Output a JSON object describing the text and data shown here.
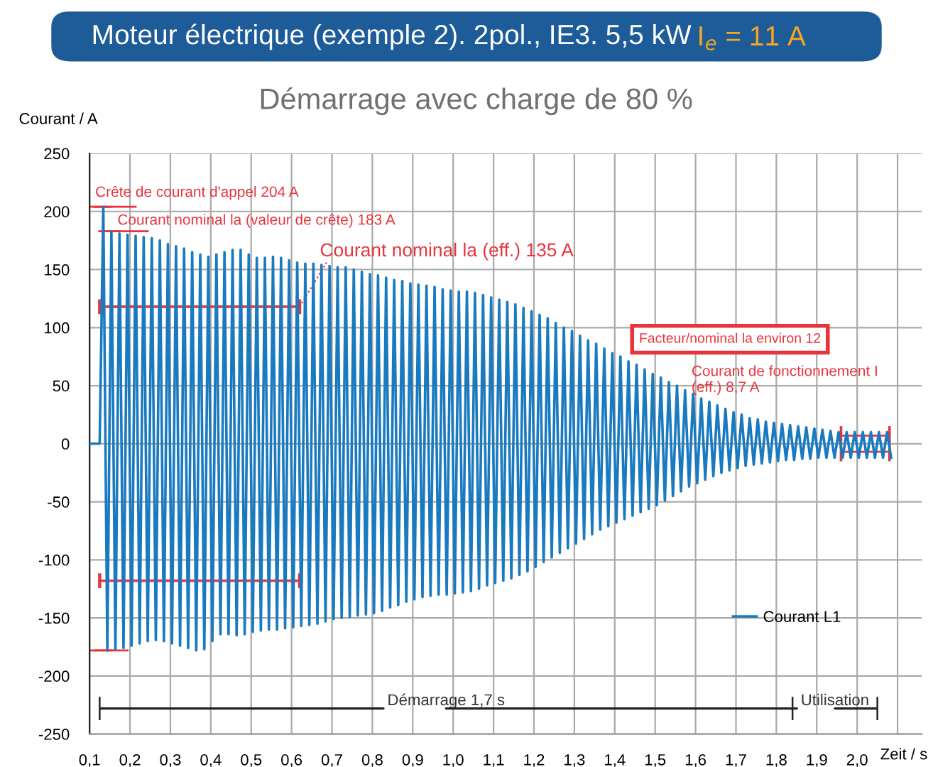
{
  "chart_data": {
    "type": "line",
    "title": "Moteur électrique (exemple 2). 2pol., IE3. 5,5 kW",
    "subtitle": "Démarrage avec charge de 80 %",
    "xlabel": "Zeit / s",
    "ylabel": "Courant / A",
    "annotations": [
      "I$_{e}$ = 11 A",
      {
        "text": "Crête de courant d'appel 204 A",
        "x": 0.134,
        "y": 204
      },
      {
        "text": "Courant nominal la (valeur de crête) 183 A",
        "x": 0.154,
        "y": 183
      },
      {
        "text": "Courant nominal la (eff.) 135 A",
        "x": 0.62,
        "y": 118
      },
      "Facteur/nominal la environ 12",
      {
        "text": "Courant de fonctionnement I (eff.) 8,7 A",
        "x": 1.96,
        "y": 10
      },
      "Démarrage 1,7 s",
      "Utilisation"
    ],
    "xlim": [
      0.1,
      2.16
    ],
    "ylim": [
      -250,
      250
    ],
    "xticks": [
      {
        "value": 0.1,
        "label": "0,1"
      },
      {
        "value": 0.2,
        "label": "0,2"
      },
      {
        "value": 0.3,
        "label": "0,3"
      },
      {
        "value": 0.4,
        "label": "0,4"
      },
      {
        "value": 0.5,
        "label": "0,5"
      },
      {
        "value": 0.6,
        "label": "0,6"
      },
      {
        "value": 0.7,
        "label": "0,7"
      },
      {
        "value": 0.8,
        "label": "0,8"
      },
      {
        "value": 0.9,
        "label": "0,9"
      },
      {
        "value": 1.0,
        "label": "1,0"
      },
      {
        "value": 1.1,
        "label": "1,1"
      },
      {
        "value": 1.2,
        "label": "1,2"
      },
      {
        "value": 1.3,
        "label": "1,3"
      },
      {
        "value": 1.4,
        "label": "1,4"
      },
      {
        "value": 1.5,
        "label": "1,5"
      },
      {
        "value": 1.6,
        "label": "1,6"
      },
      {
        "value": 1.7,
        "label": "1,7"
      },
      {
        "value": 1.8,
        "label": "1,8"
      },
      {
        "value": 1.9,
        "label": "1,9"
      },
      {
        "value": 2.0,
        "label": "2,0"
      },
      {
        "value": 2.1,
        "label": null
      }
    ],
    "yticks": [
      -250,
      -200,
      -150,
      -100,
      -50,
      0,
      50,
      100,
      150,
      200,
      250
    ],
    "grid": true,
    "legend": "bottom right",
    "marker": "none",
    "line_style": "solid",
    "series": [
      {
        "name": "Courant L1",
        "color": "#1a7abf",
        "x": [
          0.1,
          0.125,
          0.134,
          0.144,
          0.154,
          0.164,
          0.174,
          0.184,
          0.194,
          0.204,
          0.214,
          0.224,
          0.234,
          0.244,
          0.254,
          0.264,
          0.274,
          0.284,
          0.294,
          0.304,
          0.314,
          0.324,
          0.334,
          0.344,
          0.354,
          0.364,
          0.374,
          0.384,
          0.394,
          0.404,
          0.414,
          0.424,
          0.434,
          0.444,
          0.454,
          0.464,
          0.474,
          0.484,
          0.494,
          0.504,
          0.514,
          0.524,
          0.534,
          0.544,
          0.554,
          0.564,
          0.574,
          0.584,
          0.594,
          0.604,
          0.614,
          0.624,
          0.634,
          0.644,
          0.654,
          0.664,
          0.674,
          0.684,
          0.694,
          0.704,
          0.714,
          0.724,
          0.734,
          0.744,
          0.754,
          0.764,
          0.774,
          0.784,
          0.794,
          0.804,
          0.814,
          0.824,
          0.834,
          0.844,
          0.854,
          0.864,
          0.874,
          0.884,
          0.894,
          0.904,
          0.914,
          0.924,
          0.934,
          0.944,
          0.954,
          0.964,
          0.974,
          0.984,
          0.994,
          1.004,
          1.014,
          1.024,
          1.034,
          1.044,
          1.054,
          1.064,
          1.074,
          1.084,
          1.094,
          1.104,
          1.114,
          1.124,
          1.134,
          1.144,
          1.154,
          1.164,
          1.174,
          1.184,
          1.194,
          1.204,
          1.214,
          1.224,
          1.234,
          1.244,
          1.254,
          1.264,
          1.274,
          1.284,
          1.294,
          1.304,
          1.314,
          1.324,
          1.334,
          1.344,
          1.354,
          1.364,
          1.374,
          1.384,
          1.394,
          1.404,
          1.414,
          1.424,
          1.434,
          1.444,
          1.454,
          1.464,
          1.474,
          1.484,
          1.494,
          1.504,
          1.514,
          1.524,
          1.534,
          1.544,
          1.554,
          1.564,
          1.574,
          1.584,
          1.594,
          1.604,
          1.614,
          1.624,
          1.634,
          1.644,
          1.654,
          1.664,
          1.674,
          1.684,
          1.694,
          1.704,
          1.714,
          1.724,
          1.734,
          1.744,
          1.754,
          1.764,
          1.774,
          1.784,
          1.794,
          1.804,
          1.814,
          1.824,
          1.834,
          1.844,
          1.854,
          1.864,
          1.874,
          1.884,
          1.894,
          1.904,
          1.914,
          1.924,
          1.934,
          1.944,
          1.954,
          1.964,
          1.974,
          1.984,
          1.994,
          2.004,
          2.014,
          2.024,
          2.034,
          2.044,
          2.054,
          2.064,
          2.074,
          2.084
        ],
        "values": [
          0,
          0,
          204,
          -178,
          183,
          -177,
          181,
          -176,
          180,
          -174,
          179,
          -172,
          178,
          -170,
          177,
          -169,
          175,
          -170,
          172,
          -172,
          170,
          -174,
          168,
          -176,
          165,
          -178,
          163,
          -177,
          161,
          -170,
          163,
          -164,
          165,
          -164,
          167,
          -165,
          167,
          -164,
          163,
          -162,
          160,
          -161,
          160,
          -160,
          161,
          -160,
          160,
          -159,
          158,
          -158,
          156,
          -157,
          155,
          -156,
          155,
          -155,
          154,
          -153,
          153,
          -151,
          152,
          -150,
          152,
          -149,
          150,
          -148,
          148,
          -147,
          146,
          -146,
          145,
          -144,
          143,
          -141,
          141,
          -139,
          140,
          -136,
          138,
          -134,
          137,
          -132,
          136,
          -131,
          135,
          -130,
          133,
          -130,
          132,
          -129,
          131,
          -128,
          131,
          -127,
          130,
          -125,
          128,
          -122,
          126,
          -120,
          124,
          -118,
          122,
          -116,
          120,
          -113,
          117,
          -110,
          114,
          -106,
          111,
          -102,
          108,
          -98,
          104,
          -94,
          100,
          -90,
          97,
          -86,
          93,
          -82,
          89,
          -78,
          86,
          -74,
          82,
          -71,
          78,
          -68,
          75,
          -65,
          71,
          -62,
          68,
          -59,
          64,
          -56,
          60,
          -53,
          57,
          -49,
          53,
          -45,
          50,
          -41,
          46,
          -37,
          43,
          -34,
          39,
          -31,
          36,
          -28,
          33,
          -25,
          30,
          -23,
          27,
          -21,
          25,
          -19,
          22,
          -18,
          21,
          -17,
          19,
          -16,
          18,
          -15,
          17,
          -14,
          16,
          -14,
          15,
          -13,
          14,
          -13,
          13,
          -12,
          12,
          -12,
          11,
          -12,
          10,
          -12,
          10,
          -12,
          10,
          -12,
          10,
          -12,
          10,
          -12,
          10,
          -12,
          10,
          -12
        ]
      }
    ]
  }
}
